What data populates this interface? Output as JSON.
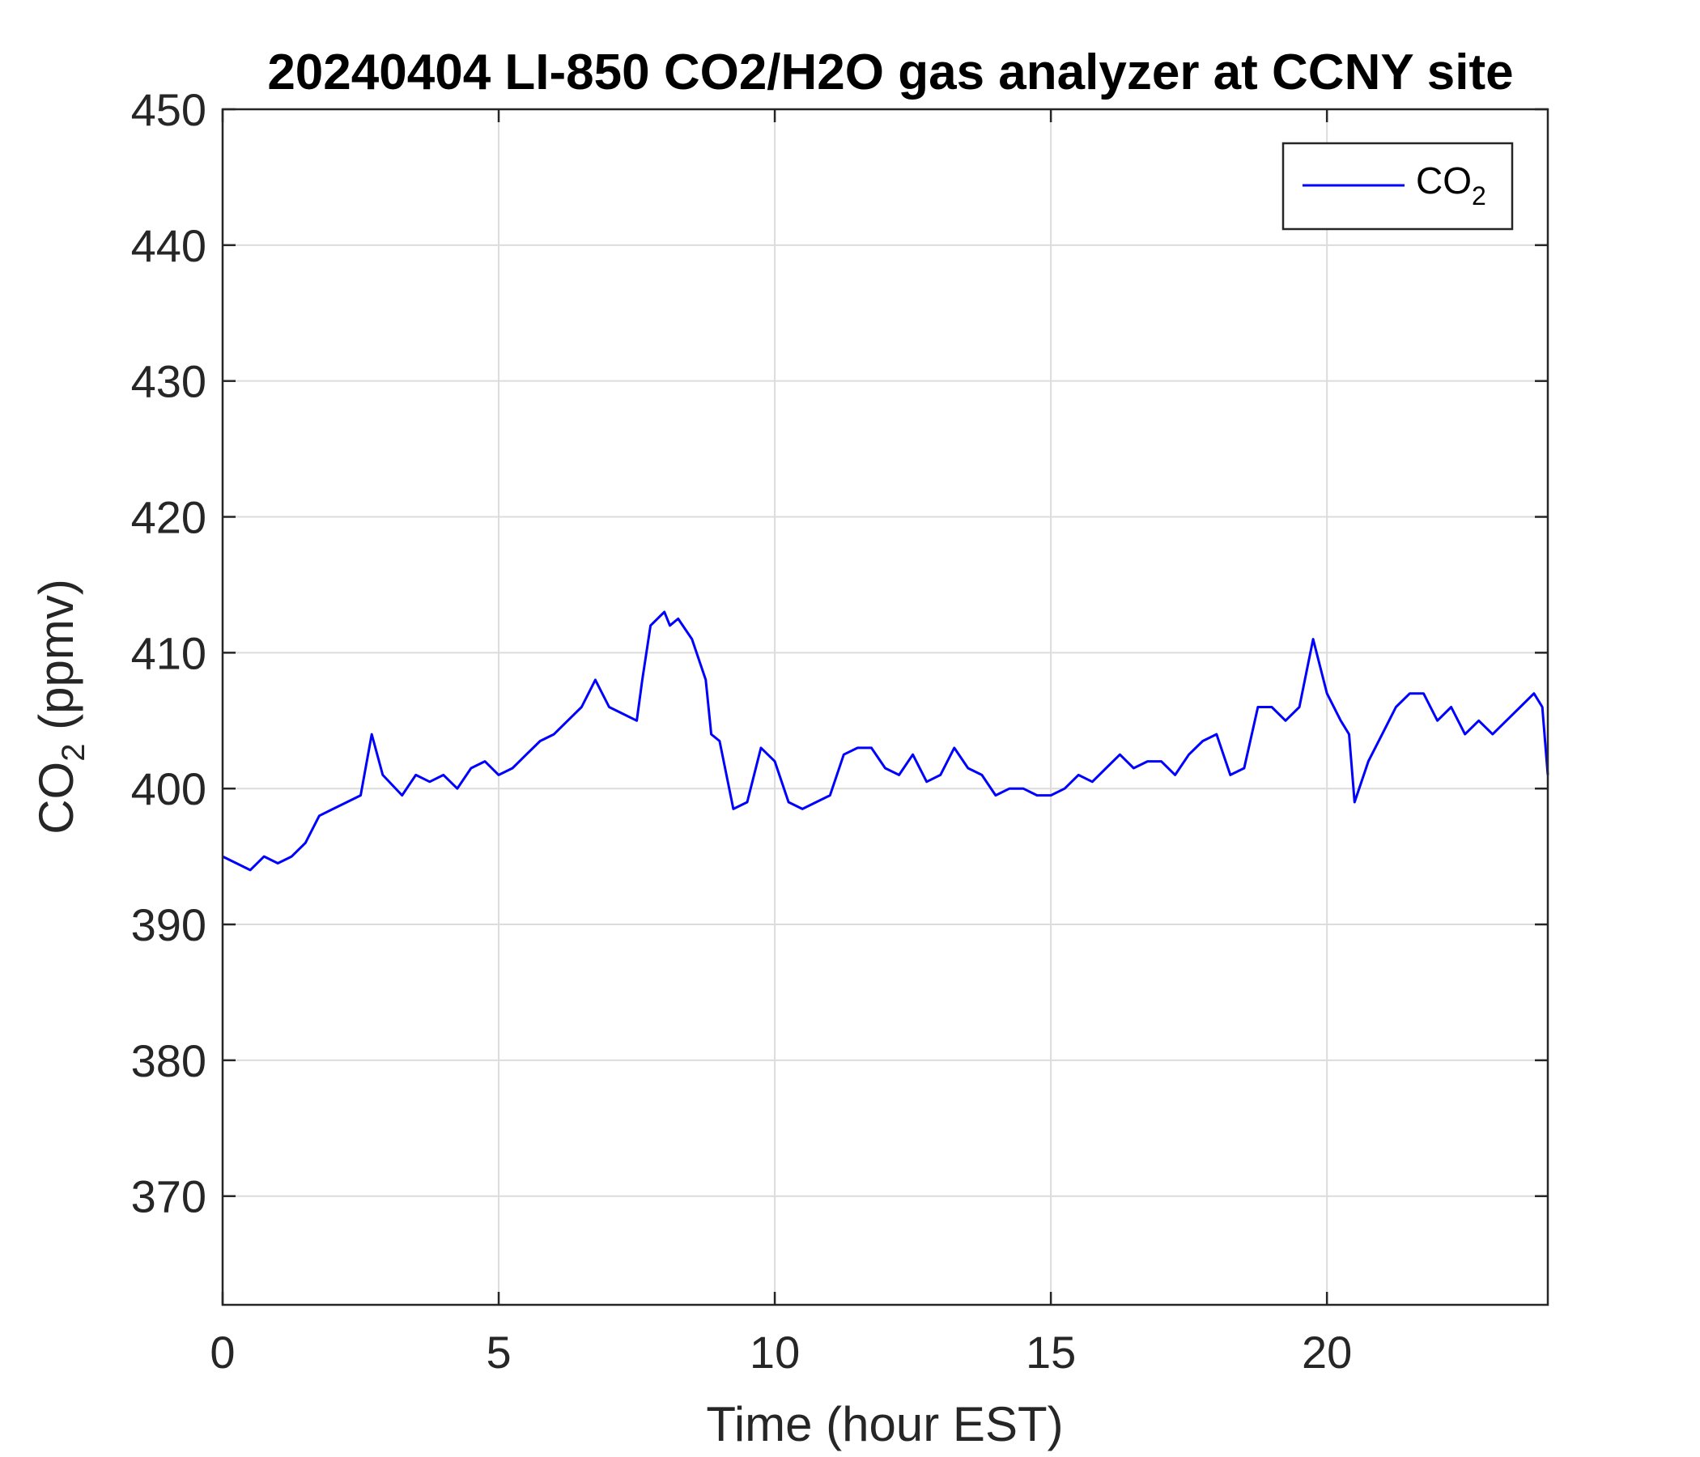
{
  "chart_data": {
    "type": "line",
    "title": "20240404 LI-850 CO2/H2O gas analyzer at CCNY site",
    "xlabel": "Time (hour EST)",
    "ylabel": {
      "base": "CO",
      "sub": "2",
      "rest": " (ppmv)"
    },
    "xlim": [
      0,
      24
    ],
    "ylim": [
      362,
      450
    ],
    "xticks": [
      0,
      5,
      10,
      15,
      20
    ],
    "yticks": [
      370,
      380,
      390,
      400,
      410,
      420,
      430,
      440,
      450
    ],
    "grid": true,
    "legend_position": "top-right",
    "series": [
      {
        "name": {
          "base": "CO",
          "sub": "2"
        },
        "color": "#0000ff",
        "x": [
          0,
          0.25,
          0.5,
          0.75,
          1.0,
          1.25,
          1.5,
          1.75,
          2.0,
          2.25,
          2.5,
          2.7,
          2.9,
          3.25,
          3.5,
          3.75,
          4.0,
          4.25,
          4.5,
          4.75,
          5.0,
          5.25,
          5.5,
          5.75,
          6.0,
          6.25,
          6.5,
          6.75,
          7.0,
          7.25,
          7.5,
          7.6,
          7.75,
          8.0,
          8.1,
          8.25,
          8.5,
          8.75,
          8.85,
          9.0,
          9.25,
          9.5,
          9.75,
          10.0,
          10.25,
          10.5,
          10.75,
          11.0,
          11.25,
          11.5,
          11.75,
          12.0,
          12.25,
          12.5,
          12.75,
          13.0,
          13.25,
          13.5,
          13.75,
          14.0,
          14.25,
          14.5,
          14.75,
          15.0,
          15.25,
          15.5,
          15.75,
          16.0,
          16.25,
          16.5,
          16.75,
          17.0,
          17.25,
          17.5,
          17.75,
          18.0,
          18.25,
          18.5,
          18.75,
          19.0,
          19.25,
          19.5,
          19.65,
          19.75,
          20.0,
          20.25,
          20.4,
          20.5,
          20.75,
          21.0,
          21.25,
          21.5,
          21.75,
          22.0,
          22.25,
          22.5,
          22.75,
          23.0,
          23.25,
          23.5,
          23.75,
          23.9,
          24.0
        ],
        "values": [
          395,
          394.5,
          394,
          395,
          394.5,
          395,
          396,
          398,
          398.5,
          399,
          399.5,
          404,
          401,
          399.5,
          401,
          400.5,
          401,
          400,
          401.5,
          402,
          401,
          401.5,
          402.5,
          403.5,
          404,
          405,
          406,
          408,
          406,
          405.5,
          405,
          408,
          412,
          413,
          412,
          412.5,
          411,
          408,
          404,
          403.5,
          398.5,
          399,
          403,
          402,
          399,
          398.5,
          399,
          399.5,
          402.5,
          403,
          403,
          401.5,
          401,
          402.5,
          400.5,
          401,
          403,
          401.5,
          401,
          399.5,
          400,
          400,
          399.5,
          399.5,
          400,
          401,
          400.5,
          401.5,
          402.5,
          401.5,
          402,
          402,
          401,
          402.5,
          403.5,
          404,
          401,
          401.5,
          406,
          406,
          405,
          406,
          409,
          411,
          407,
          405,
          404,
          399,
          402,
          404,
          406,
          407,
          407,
          405,
          406,
          404,
          405,
          404,
          405,
          406,
          407,
          406,
          401
        ]
      }
    ]
  }
}
